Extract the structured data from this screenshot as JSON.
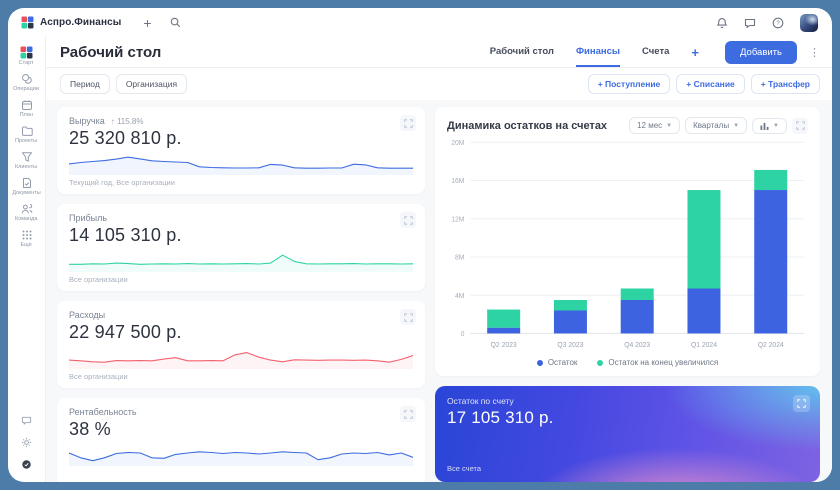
{
  "topbar": {
    "app_name": "Аспро.Финансы",
    "plus": "+"
  },
  "sidebar": {
    "items": [
      {
        "label": "Старт"
      },
      {
        "label": "Операции"
      },
      {
        "label": "План"
      },
      {
        "label": "Проекты"
      },
      {
        "label": "Клиенты"
      },
      {
        "label": "Документы"
      },
      {
        "label": "Команда"
      },
      {
        "label": "Ещё"
      }
    ]
  },
  "header": {
    "title": "Рабочий стол",
    "tabs": [
      {
        "label": "Рабочий стол"
      },
      {
        "label": "Финансы"
      },
      {
        "label": "Счета"
      }
    ],
    "tab_add": "+",
    "add_button": "Добавить",
    "menu_dots": "⋮"
  },
  "filters": {
    "period": "Период",
    "organization": "Организация",
    "income": "+ Поступление",
    "expense": "+ Списание",
    "transfer": "+ Трансфер"
  },
  "metrics": [
    {
      "title": "Выручка",
      "delta": "↑ 115.8%",
      "value": "25 320 810 р.",
      "footer": "Текущий год, Все организации"
    },
    {
      "title": "Прибыль",
      "delta": "",
      "value": "14 105 310 р.",
      "footer": "Все организации"
    },
    {
      "title": "Расходы",
      "delta": "",
      "value": "22 947 500 р.",
      "footer": "Все организации"
    },
    {
      "title": "Рентабельность",
      "delta": "",
      "value": "38 %",
      "footer": ""
    }
  ],
  "balance_widget": {
    "title": "Динамика остатков на счетах",
    "range_select": "12 мес",
    "group_select": "Кварталы"
  },
  "account_card": {
    "label": "Остаток по счету",
    "value": "17 105 310 р.",
    "footer": "Все счета"
  },
  "colors": {
    "accent": "#3d6be0",
    "bar_blue": "#3d63e0",
    "teal": "#2ed3a4",
    "red": "#f4616e",
    "frame": "#4d7ca8",
    "content_bg": "#f7f8fa"
  },
  "chart_data": [
    {
      "type": "bar",
      "stacked": true,
      "title": "Динамика остатков на счетах",
      "categories": [
        "Q2 2023",
        "Q3 2023",
        "Q4 2023",
        "Q1 2024",
        "Q2 2024"
      ],
      "series": [
        {
          "name": "Остаток",
          "color": "#3d63e0",
          "values": [
            0.6,
            2.4,
            3.5,
            4.7,
            15.0
          ]
        },
        {
          "name": "Остаток на конец увеличился",
          "color": "#2ed3a4",
          "values": [
            1.9,
            1.1,
            1.2,
            10.3,
            2.1
          ]
        }
      ],
      "ylim": [
        0,
        20
      ],
      "yticks": [
        0,
        4,
        8,
        12,
        16,
        20
      ],
      "ytick_labels": [
        "0",
        "4M",
        "8M",
        "12M",
        "16M",
        "20M"
      ],
      "grid": true,
      "legend_position": "bottom"
    },
    {
      "type": "line",
      "name": "revenue-sparkline",
      "color": "#3d6be0",
      "points": [
        0.42,
        0.48,
        0.52,
        0.56,
        0.62,
        0.7,
        0.63,
        0.55,
        0.52,
        0.5,
        0.48,
        0.3,
        0.27,
        0.26,
        0.25,
        0.25,
        0.26,
        0.4,
        0.37,
        0.26,
        0.24,
        0.24,
        0.25,
        0.25,
        0.41,
        0.38,
        0.26,
        0.24,
        0.24,
        0.24
      ]
    },
    {
      "type": "line",
      "name": "profit-sparkline",
      "color": "#2ed3a4",
      "points": [
        0.28,
        0.28,
        0.3,
        0.29,
        0.33,
        0.31,
        0.28,
        0.29,
        0.3,
        0.29,
        0.31,
        0.29,
        0.3,
        0.29,
        0.3,
        0.31,
        0.29,
        0.33,
        0.66,
        0.4,
        0.3,
        0.29,
        0.3,
        0.3,
        0.31,
        0.29,
        0.3,
        0.3,
        0.29,
        0.3
      ]
    },
    {
      "type": "line",
      "name": "expenses-sparkline",
      "color": "#f4616e",
      "points": [
        0.33,
        0.3,
        0.26,
        0.24,
        0.31,
        0.3,
        0.31,
        0.3,
        0.37,
        0.43,
        0.3,
        0.3,
        0.31,
        0.3,
        0.55,
        0.64,
        0.45,
        0.33,
        0.26,
        0.34,
        0.33,
        0.32,
        0.33,
        0.33,
        0.32,
        0.33,
        0.3,
        0.24,
        0.36,
        0.52
      ]
    },
    {
      "type": "line",
      "name": "margin-sparkline",
      "color": "#3d6be0",
      "points": [
        0.5,
        0.3,
        0.18,
        0.3,
        0.48,
        0.52,
        0.5,
        0.3,
        0.28,
        0.44,
        0.5,
        0.55,
        0.52,
        0.48,
        0.52,
        0.5,
        0.46,
        0.5,
        0.55,
        0.52,
        0.5,
        0.22,
        0.3,
        0.46,
        0.5,
        0.48,
        0.52,
        0.42,
        0.5,
        0.32
      ]
    }
  ]
}
